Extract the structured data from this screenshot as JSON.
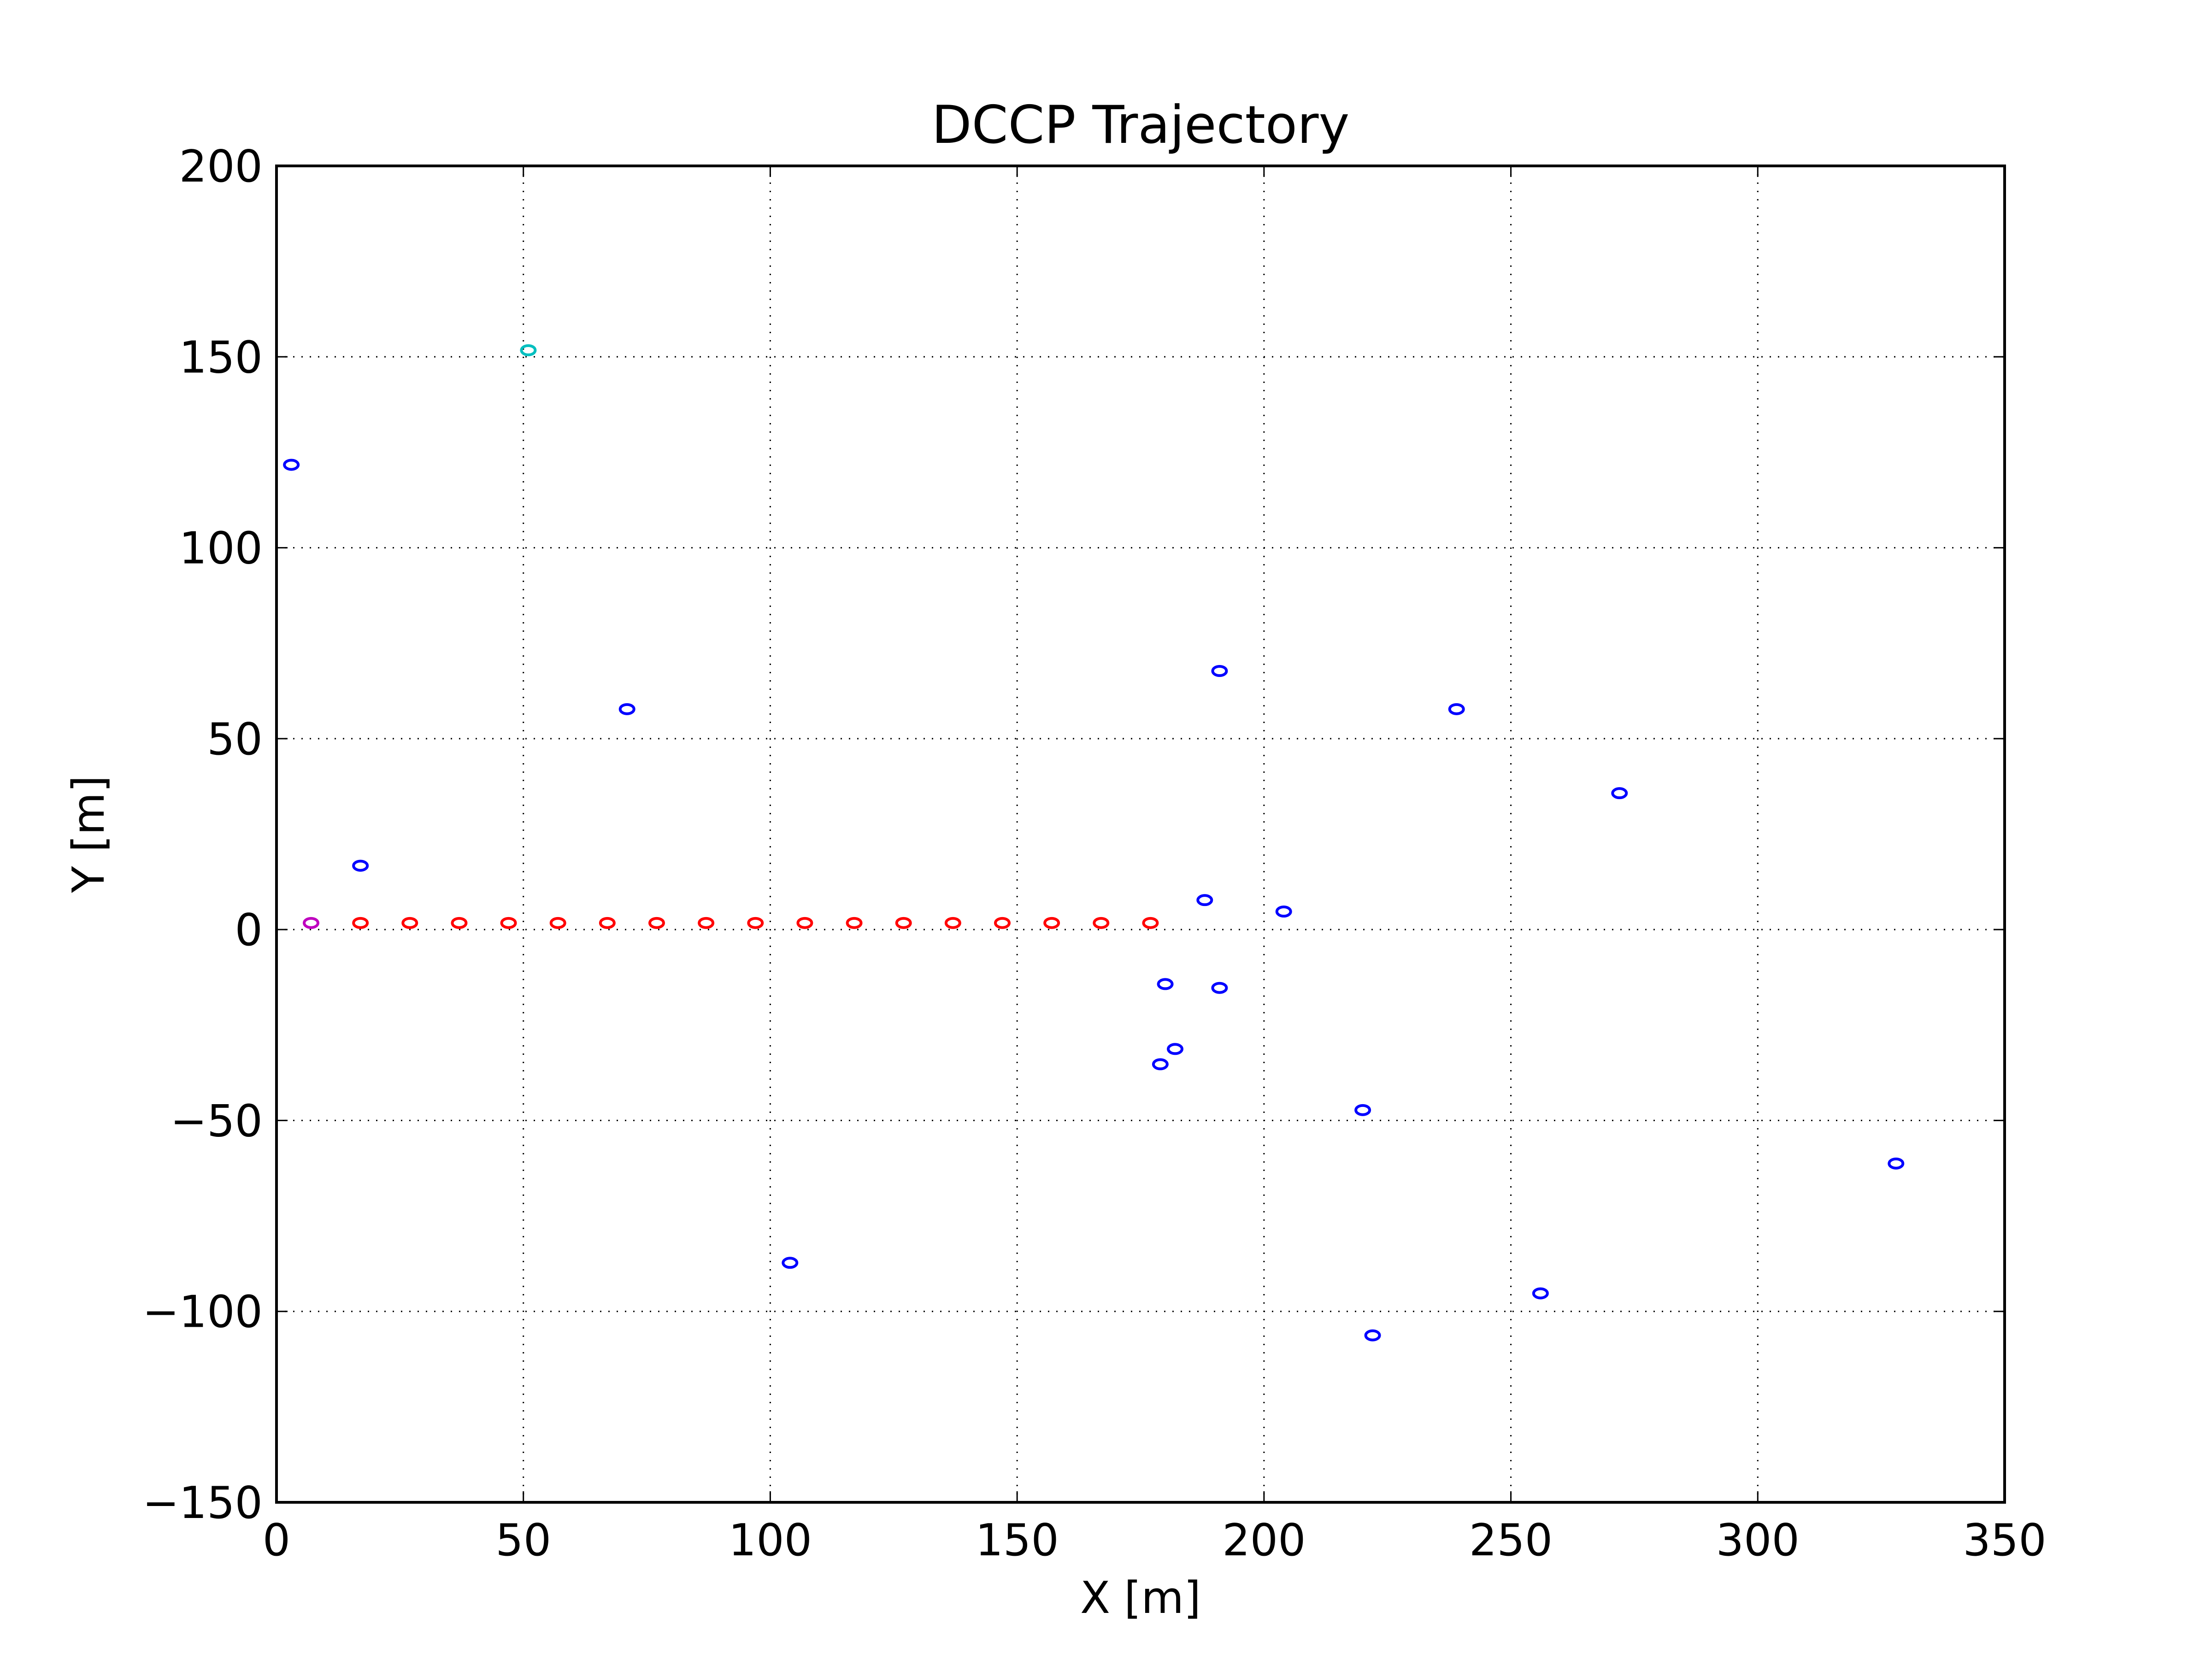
{
  "chart_data": {
    "type": "scatter",
    "title": "DCCP Trajectory",
    "xlabel": "X [m]",
    "ylabel": "Y [m]",
    "xlim": [
      0,
      350
    ],
    "ylim": [
      -150,
      200
    ],
    "grid": true,
    "x_ticks": [
      0,
      50,
      100,
      150,
      200,
      250,
      300,
      350
    ],
    "y_ticks": [
      -150,
      -100,
      -50,
      0,
      50,
      100,
      150,
      200
    ],
    "x_tick_labels": [
      "0",
      "50",
      "100",
      "150",
      "200",
      "250",
      "300",
      "350"
    ],
    "y_tick_labels": [
      "−150",
      "−100",
      "−50",
      "0",
      "50",
      "100",
      "150",
      "200"
    ],
    "marker": "ellipse-outline",
    "series": [
      {
        "color": "#0000ff",
        "points": [
          [
            3,
            121
          ],
          [
            17,
            16
          ],
          [
            71,
            57
          ],
          [
            104,
            -88
          ],
          [
            179,
            -36
          ],
          [
            180,
            -15
          ],
          [
            182,
            -32
          ],
          [
            188,
            7
          ],
          [
            191,
            67
          ],
          [
            191,
            -16
          ],
          [
            204,
            4
          ],
          [
            220,
            -48
          ],
          [
            222,
            -107
          ],
          [
            239,
            57
          ],
          [
            256,
            -96
          ],
          [
            272,
            35
          ],
          [
            328,
            -62
          ]
        ]
      },
      {
        "color": "#ff0000",
        "points": [
          [
            17,
            1
          ],
          [
            27,
            1
          ],
          [
            37,
            1
          ],
          [
            47,
            1
          ],
          [
            57,
            1
          ],
          [
            67,
            1
          ],
          [
            77,
            1
          ],
          [
            87,
            1
          ],
          [
            97,
            1
          ],
          [
            107,
            1
          ],
          [
            117,
            1
          ],
          [
            127,
            1
          ],
          [
            137,
            1
          ],
          [
            147,
            1
          ],
          [
            157,
            1
          ],
          [
            167,
            1
          ],
          [
            177,
            1
          ]
        ]
      },
      {
        "color": "#bf00bf",
        "points": [
          [
            7,
            1
          ]
        ]
      },
      {
        "color": "#00bfbf",
        "points": [
          [
            51,
            151
          ]
        ]
      }
    ]
  }
}
